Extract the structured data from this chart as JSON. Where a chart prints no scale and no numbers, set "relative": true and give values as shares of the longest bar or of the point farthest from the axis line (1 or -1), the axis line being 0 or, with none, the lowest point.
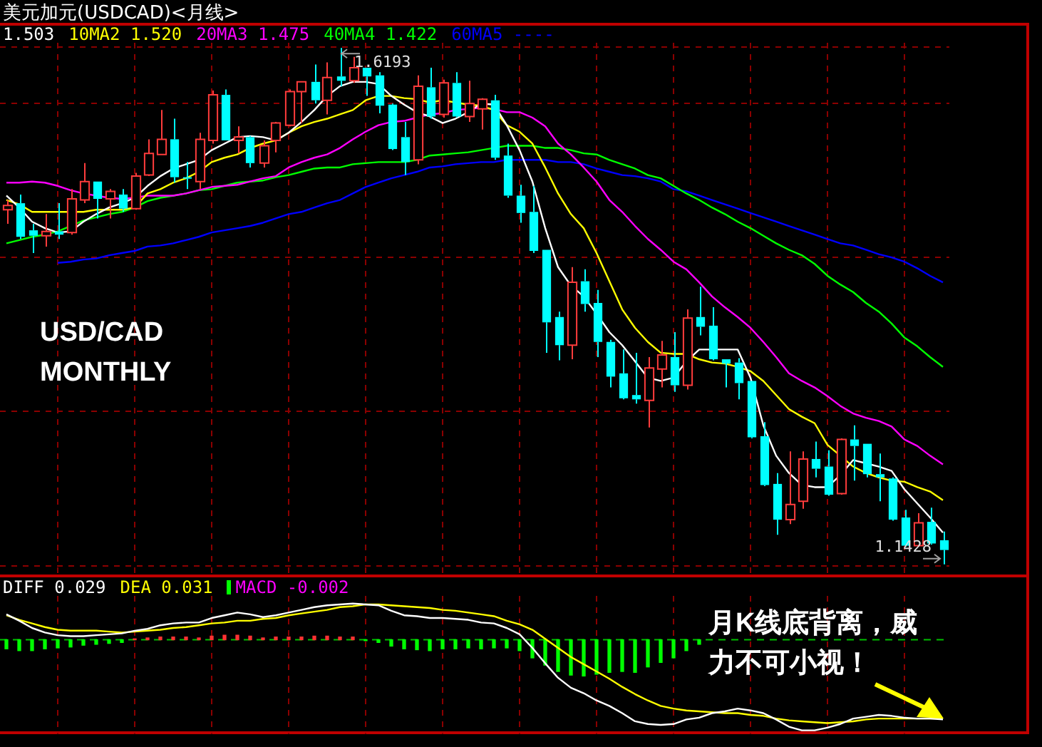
{
  "chart_data": [
    {
      "type": "candlestick",
      "title": "美元加元(USDCAD)<月线>",
      "categories": [
        null,
        null,
        null,
        null,
        null,
        null,
        null,
        null,
        null,
        null,
        null,
        null,
        null,
        null,
        null,
        null,
        null,
        null,
        null,
        null,
        null,
        null,
        null,
        null,
        null,
        null,
        null,
        null,
        null,
        null,
        null,
        null,
        null,
        null,
        null,
        null,
        null,
        null,
        null,
        null,
        null,
        null,
        null,
        null,
        null,
        null,
        null,
        null,
        null,
        null,
        null,
        null,
        null,
        null,
        null,
        null,
        null,
        null,
        null,
        null,
        null,
        null,
        null,
        null,
        null,
        null,
        null,
        null,
        null,
        null,
        null,
        null,
        null,
        null
      ],
      "ohlc": [
        [
          1.47,
          1.479,
          1.457,
          1.474
        ],
        [
          1.476,
          1.484,
          1.443,
          1.445
        ],
        [
          1.451,
          1.457,
          1.43,
          1.446
        ],
        [
          1.446,
          1.466,
          1.436,
          1.45
        ],
        [
          1.45,
          1.476,
          1.443,
          1.447
        ],
        [
          1.449,
          1.489,
          1.447,
          1.48
        ],
        [
          1.479,
          1.513,
          1.476,
          1.496
        ],
        [
          1.496,
          1.496,
          1.462,
          1.48
        ],
        [
          1.48,
          1.489,
          1.462,
          1.487
        ],
        [
          1.484,
          1.489,
          1.468,
          1.471
        ],
        [
          1.471,
          1.504,
          1.47,
          1.501
        ],
        [
          1.502,
          1.535,
          1.501,
          1.522
        ],
        [
          1.521,
          1.562,
          1.521,
          1.535
        ],
        [
          1.535,
          1.554,
          1.495,
          1.5
        ],
        [
          1.5,
          1.514,
          1.489,
          1.499
        ],
        [
          1.496,
          1.541,
          1.489,
          1.535
        ],
        [
          1.534,
          1.58,
          1.531,
          1.576
        ],
        [
          1.576,
          1.581,
          1.534,
          1.534
        ],
        [
          1.534,
          1.547,
          1.522,
          1.537
        ],
        [
          1.537,
          1.538,
          1.509,
          1.513
        ],
        [
          1.513,
          1.534,
          1.509,
          1.529
        ],
        [
          1.534,
          1.551,
          1.523,
          1.55
        ],
        [
          1.548,
          1.581,
          1.547,
          1.579
        ],
        [
          1.579,
          1.588,
          1.55,
          1.588
        ],
        [
          1.588,
          1.604,
          1.568,
          1.571
        ],
        [
          1.571,
          1.606,
          1.558,
          1.592
        ],
        [
          1.593,
          1.6193,
          1.584,
          1.589
        ],
        [
          1.589,
          1.611,
          1.587,
          1.601
        ],
        [
          1.601,
          1.601,
          1.575,
          1.593
        ],
        [
          1.594,
          1.597,
          1.559,
          1.566
        ],
        [
          1.567,
          1.568,
          1.525,
          1.526
        ],
        [
          1.537,
          1.551,
          1.502,
          1.514
        ],
        [
          1.516,
          1.594,
          1.512,
          1.584
        ],
        [
          1.583,
          1.601,
          1.554,
          1.556
        ],
        [
          1.558,
          1.59,
          1.555,
          1.587
        ],
        [
          1.587,
          1.597,
          1.555,
          1.556
        ],
        [
          1.556,
          1.589,
          1.551,
          1.568
        ],
        [
          1.563,
          1.573,
          1.544,
          1.572
        ],
        [
          1.571,
          1.576,
          1.516,
          1.518
        ],
        [
          1.52,
          1.531,
          1.481,
          1.483
        ],
        [
          1.483,
          1.493,
          1.458,
          1.467
        ],
        [
          1.468,
          1.492,
          1.43,
          1.432
        ],
        [
          1.433,
          1.433,
          1.338,
          1.366
        ],
        [
          1.371,
          1.376,
          1.331,
          1.345
        ],
        [
          1.345,
          1.417,
          1.332,
          1.403
        ],
        [
          1.404,
          1.415,
          1.376,
          1.383
        ],
        [
          1.384,
          1.396,
          1.334,
          1.348
        ],
        [
          1.348,
          1.35,
          1.306,
          1.316
        ],
        [
          1.319,
          1.341,
          1.295,
          1.296
        ],
        [
          1.299,
          1.338,
          1.291,
          1.295
        ],
        [
          1.294,
          1.334,
          1.269,
          1.324
        ],
        [
          1.323,
          1.349,
          1.306,
          1.336
        ],
        [
          1.334,
          1.357,
          1.302,
          1.308
        ],
        [
          1.308,
          1.378,
          1.304,
          1.37
        ],
        [
          1.371,
          1.399,
          1.354,
          1.362
        ],
        [
          1.363,
          1.38,
          1.331,
          1.332
        ],
        [
          1.332,
          1.332,
          1.306,
          1.328
        ],
        [
          1.329,
          1.333,
          1.295,
          1.31
        ],
        [
          1.312,
          1.312,
          1.259,
          1.26
        ],
        [
          1.261,
          1.274,
          1.215,
          1.216
        ],
        [
          1.217,
          1.227,
          1.17,
          1.184
        ],
        [
          1.184,
          1.247,
          1.18,
          1.198
        ],
        [
          1.201,
          1.247,
          1.194,
          1.24
        ],
        [
          1.24,
          1.256,
          1.223,
          1.231
        ],
        [
          1.233,
          1.248,
          1.206,
          1.207
        ],
        [
          1.208,
          1.259,
          1.207,
          1.258
        ],
        [
          1.258,
          1.271,
          1.22,
          1.252
        ],
        [
          1.254,
          1.254,
          1.223,
          1.226
        ],
        [
          1.226,
          1.245,
          1.201,
          1.223
        ],
        [
          1.222,
          1.223,
          1.183,
          1.184
        ],
        [
          1.186,
          1.193,
          1.159,
          1.16
        ],
        [
          1.16,
          1.19,
          1.159,
          1.181
        ],
        [
          1.182,
          1.195,
          1.161,
          1.162
        ],
        [
          1.165,
          1.173,
          1.1428,
          1.156
        ]
      ],
      "colors": [
        "#ff3c3c",
        "#00ffff",
        "#00ffff",
        "#ff3c3c",
        "#00ffff",
        "#ff3c3c",
        "#ff3c3c",
        "#00ffff",
        "#ff3c3c",
        "#00ffff",
        "#ff3c3c",
        "#ff3c3c",
        "#ff3c3c",
        "#00ffff",
        "#00ffff",
        "#ff3c3c",
        "#ff3c3c",
        "#00ffff",
        "#ff3c3c",
        "#00ffff",
        "#ff3c3c",
        "#ff3c3c",
        "#ff3c3c",
        "#ff3c3c",
        "#00ffff",
        "#ff3c3c",
        "#00ffff",
        "#ff3c3c",
        "#00ffff",
        "#00ffff",
        "#00ffff",
        "#00ffff",
        "#ff3c3c",
        "#00ffff",
        "#ff3c3c",
        "#00ffff",
        "#ff3c3c",
        "#ff3c3c",
        "#00ffff",
        "#00ffff",
        "#00ffff",
        "#00ffff",
        "#00ffff",
        "#00ffff",
        "#ff3c3c",
        "#00ffff",
        "#00ffff",
        "#00ffff",
        "#00ffff",
        "#00ffff",
        "#ff3c3c",
        "#ff3c3c",
        "#00ffff",
        "#ff3c3c",
        "#00ffff",
        "#00ffff",
        "#00ffff",
        "#00ffff",
        "#00ffff",
        "#00ffff",
        "#00ffff",
        "#ff3c3c",
        "#ff3c3c",
        "#00ffff",
        "#00ffff",
        "#ff3c3c",
        "#00ffff",
        "#00ffff",
        "#00ffff",
        "#00ffff",
        "#00ffff",
        "#ff3c3c",
        "#00ffff",
        "#00ffff"
      ],
      "series": [
        {
          "type": "line",
          "name": "1.503",
          "color": "#ffffff",
          "values": [
            1.483,
            1.472,
            1.459,
            1.453,
            1.449,
            1.45,
            1.459,
            1.466,
            1.472,
            1.476,
            1.481,
            1.492,
            1.501,
            1.508,
            1.512,
            1.516,
            1.525,
            1.531,
            1.537,
            1.538,
            1.537,
            1.534,
            1.541,
            1.551,
            1.562,
            1.575,
            1.584,
            1.588,
            1.588,
            1.586,
            1.575,
            1.567,
            1.56,
            1.556,
            1.55,
            1.554,
            1.56,
            1.568,
            1.567,
            1.548,
            1.525,
            1.496,
            1.453,
            1.417,
            1.4,
            1.39,
            1.374,
            1.357,
            1.345,
            1.33,
            1.315,
            1.312,
            1.315,
            1.33,
            1.341,
            1.341,
            1.341,
            1.341,
            1.315,
            1.271,
            1.243,
            1.227,
            1.216,
            1.214,
            1.214,
            1.225,
            1.239,
            1.236,
            1.233,
            1.229,
            1.212,
            1.199,
            1.186,
            1.172
          ]
        },
        {
          "type": "line",
          "name": "10MA2 1.520",
          "color": "#ffff00",
          "values": [
            1.479,
            1.475,
            1.468,
            1.468,
            1.468,
            1.468,
            1.468,
            1.47,
            1.47,
            1.47,
            1.472,
            1.485,
            1.489,
            1.495,
            1.499,
            1.505,
            1.514,
            1.518,
            1.521,
            1.527,
            1.531,
            1.534,
            1.541,
            1.547,
            1.551,
            1.554,
            1.558,
            1.562,
            1.571,
            1.575,
            1.575,
            1.573,
            1.572,
            1.569,
            1.571,
            1.569,
            1.567,
            1.566,
            1.562,
            1.548,
            1.542,
            1.531,
            1.509,
            1.485,
            1.466,
            1.453,
            1.43,
            1.404,
            1.378,
            1.361,
            1.348,
            1.338,
            1.337,
            1.337,
            1.332,
            1.329,
            1.328,
            1.325,
            1.321,
            1.312,
            1.299,
            1.286,
            1.279,
            1.273,
            1.253,
            1.243,
            1.233,
            1.227,
            1.223,
            1.22,
            1.219,
            1.214,
            1.21,
            1.202
          ]
        },
        {
          "type": "line",
          "name": "20MA3 1.475",
          "color": "#ff00ff",
          "values": [
            1.495,
            1.495,
            1.496,
            1.495,
            1.492,
            1.488,
            1.485,
            1.483,
            1.481,
            1.48,
            1.481,
            1.483,
            1.483,
            1.483,
            1.485,
            1.488,
            1.491,
            1.492,
            1.493,
            1.496,
            1.499,
            1.501,
            1.509,
            1.514,
            1.518,
            1.521,
            1.527,
            1.535,
            1.542,
            1.548,
            1.551,
            1.552,
            1.555,
            1.558,
            1.559,
            1.562,
            1.563,
            1.564,
            1.563,
            1.56,
            1.56,
            1.555,
            1.547,
            1.531,
            1.521,
            1.509,
            1.496,
            1.479,
            1.468,
            1.455,
            1.443,
            1.433,
            1.422,
            1.415,
            1.403,
            1.39,
            1.38,
            1.371,
            1.361,
            1.348,
            1.334,
            1.319,
            1.312,
            1.306,
            1.298,
            1.289,
            1.282,
            1.278,
            1.275,
            1.27,
            1.258,
            1.252,
            1.243,
            1.235
          ]
        },
        {
          "type": "line",
          "name": "40MA4 1.422",
          "color": "#00ff00",
          "values": [
            1.439,
            1.442,
            1.445,
            1.447,
            1.45,
            1.455,
            1.46,
            1.463,
            1.466,
            1.468,
            1.472,
            1.478,
            1.481,
            1.483,
            1.485,
            1.488,
            1.489,
            1.492,
            1.495,
            1.496,
            1.497,
            1.5,
            1.502,
            1.505,
            1.508,
            1.509,
            1.509,
            1.512,
            1.513,
            1.514,
            1.514,
            1.514,
            1.516,
            1.52,
            1.521,
            1.522,
            1.523,
            1.525,
            1.527,
            1.529,
            1.529,
            1.529,
            1.527,
            1.527,
            1.525,
            1.522,
            1.521,
            1.516,
            1.512,
            1.508,
            1.502,
            1.499,
            1.492,
            1.485,
            1.479,
            1.472,
            1.466,
            1.459,
            1.453,
            1.446,
            1.439,
            1.433,
            1.428,
            1.42,
            1.409,
            1.401,
            1.394,
            1.384,
            1.376,
            1.365,
            1.352,
            1.344,
            1.334,
            1.325
          ]
        },
        {
          "type": "line",
          "name": "60MA5 ----",
          "color": "#0000ff",
          "values": [
            null,
            null,
            null,
            null,
            1.421,
            1.422,
            1.424,
            1.425,
            1.428,
            1.43,
            1.432,
            1.436,
            1.437,
            1.439,
            1.442,
            1.445,
            1.449,
            1.451,
            1.453,
            1.455,
            1.458,
            1.462,
            1.466,
            1.468,
            1.472,
            1.476,
            1.479,
            1.485,
            1.491,
            1.495,
            1.499,
            1.502,
            1.505,
            1.509,
            1.51,
            1.512,
            1.513,
            1.514,
            1.514,
            1.516,
            1.516,
            1.516,
            1.516,
            1.514,
            1.514,
            1.512,
            1.508,
            1.505,
            1.502,
            1.501,
            1.499,
            1.496,
            1.489,
            1.487,
            1.483,
            1.479,
            1.475,
            1.471,
            1.467,
            1.463,
            1.459,
            1.455,
            1.451,
            1.447,
            1.443,
            1.439,
            1.437,
            1.433,
            1.429,
            1.426,
            1.422,
            1.416,
            1.409,
            1.403
          ]
        }
      ],
      "marker": "none",
      "legend": "top left",
      "grid": true,
      "tick_labels": false,
      "yticks": [
        {
          "value": 1.62,
          "label": null
        },
        {
          "value": 1.568,
          "label": null
        },
        {
          "value": 1.426,
          "label": null
        },
        {
          "value": 1.284,
          "label": null
        },
        {
          "value": 1.141,
          "label": null
        }
      ],
      "annotations": [
        "USD/CAD MONTHLY",
        "1.6193",
        "1.1428"
      ]
    },
    {
      "type": "line",
      "relative": true,
      "categories": [
        null,
        null,
        null,
        null,
        null,
        null,
        null,
        null,
        null,
        null,
        null,
        null,
        null,
        null,
        null,
        null,
        null,
        null,
        null,
        null,
        null,
        null,
        null,
        null,
        null,
        null,
        null,
        null,
        null,
        null,
        null,
        null,
        null,
        null,
        null,
        null,
        null,
        null,
        null,
        null,
        null,
        null,
        null,
        null,
        null,
        null,
        null,
        null,
        null,
        null,
        null,
        null,
        null,
        null,
        null,
        null,
        null,
        null,
        null,
        null,
        null,
        null,
        null,
        null,
        null,
        null,
        null,
        null,
        null,
        null,
        null,
        null,
        null,
        null
      ],
      "series": [
        {
          "name": "DIFF 0.029",
          "color": "#ffffff",
          "values": [
            0.28,
            0.21,
            0.13,
            0.08,
            0.05,
            0.04,
            0.04,
            0.05,
            0.06,
            0.07,
            0.1,
            0.12,
            0.16,
            0.18,
            0.19,
            0.19,
            0.24,
            0.27,
            0.3,
            0.28,
            0.25,
            0.27,
            0.3,
            0.33,
            0.36,
            0.38,
            0.39,
            0.4,
            0.39,
            0.38,
            0.32,
            0.27,
            0.26,
            0.24,
            0.24,
            0.23,
            0.22,
            0.19,
            0.18,
            0.13,
            0.06,
            -0.09,
            -0.26,
            -0.42,
            -0.53,
            -0.59,
            -0.67,
            -0.73,
            -0.81,
            -0.9,
            -0.93,
            -0.94,
            -0.93,
            -0.88,
            -0.86,
            -0.81,
            -0.79,
            -0.76,
            -0.78,
            -0.81,
            -0.88,
            -0.96,
            -1,
            -1,
            -0.97,
            -0.93,
            -0.87,
            -0.85,
            -0.83,
            -0.84,
            -0.86,
            -0.87,
            -0.87,
            -0.88
          ]
        },
        {
          "name": "DEA 0.031",
          "color": "#ffff00",
          "values": [
            0.27,
            0.22,
            0.18,
            0.14,
            0.11,
            0.1,
            0.1,
            0.1,
            0.09,
            0.08,
            0.09,
            0.1,
            0.11,
            0.13,
            0.14,
            0.16,
            0.18,
            0.19,
            0.21,
            0.21,
            0.23,
            0.24,
            0.27,
            0.29,
            0.31,
            0.33,
            0.36,
            0.37,
            0.39,
            0.39,
            0.38,
            0.37,
            0.36,
            0.35,
            0.33,
            0.32,
            0.3,
            0.28,
            0.26,
            0.21,
            0.17,
            0.11,
            0.01,
            -0.09,
            -0.19,
            -0.27,
            -0.35,
            -0.43,
            -0.52,
            -0.6,
            -0.67,
            -0.73,
            -0.76,
            -0.78,
            -0.79,
            -0.8,
            -0.81,
            -0.81,
            -0.83,
            -0.84,
            -0.87,
            -0.89,
            -0.9,
            -0.91,
            -0.92,
            -0.91,
            -0.9,
            -0.88,
            -0.87,
            -0.87,
            -0.87,
            -0.87,
            -0.87,
            -0.87
          ]
        },
        {
          "type": "bar",
          "name": "MACD -0.002",
          "color": "#ff00ff",
          "values": [
            -0.1,
            -0.12,
            -0.12,
            -0.1,
            -0.09,
            -0.08,
            -0.06,
            -0.05,
            -0.04,
            -0.03,
            0.01,
            0.02,
            0.03,
            0.03,
            0.03,
            0.02,
            0.04,
            0.05,
            0.05,
            0.04,
            0.02,
            0.03,
            0.03,
            0.03,
            0.04,
            0.04,
            0.03,
            0.03,
            -0.01,
            -0.03,
            -0.07,
            -0.1,
            -0.11,
            -0.12,
            -0.1,
            -0.1,
            -0.09,
            -0.1,
            -0.09,
            -0.09,
            -0.12,
            -0.2,
            -0.28,
            -0.35,
            -0.39,
            -0.4,
            -0.38,
            -0.36,
            -0.35,
            -0.36,
            -0.3,
            -0.25,
            -0.2,
            -0.12,
            -0.05,
            null,
            null,
            null,
            null,
            null,
            null,
            null,
            null,
            null,
            null,
            null,
            null,
            null,
            null,
            null,
            null,
            null,
            null,
            null
          ],
          "colors": [
            "#00ff00",
            "#00ff00",
            "#00ff00",
            "#00ff00",
            "#00ff00",
            "#00ff00",
            "#00ff00",
            "#00ff00",
            "#00ff00",
            "#00ff00",
            "#ff3232",
            "#ff3232",
            "#ff3232",
            "#ff3232",
            "#ff3232",
            "#ff3232",
            "#ff3232",
            "#ff3232",
            "#ff3232",
            "#ff3232",
            "#ff3232",
            "#ff3232",
            "#ff3232",
            "#ff3232",
            "#ff3232",
            "#ff3232",
            "#ff3232",
            "#ff3232",
            "#00ff00",
            "#00ff00",
            "#00ff00",
            "#00ff00",
            "#00ff00",
            "#00ff00",
            "#00ff00",
            "#00ff00",
            "#00ff00",
            "#00ff00",
            "#00ff00",
            "#00ff00",
            "#00ff00",
            "#00ff00",
            "#00ff00",
            "#00ff00",
            "#00ff00",
            "#00ff00",
            "#00ff00",
            "#00ff00",
            "#00ff00",
            "#00ff00",
            "#00ff00",
            "#00ff00",
            "#00ff00",
            "#00ff00",
            "#00ff00",
            null,
            null,
            null,
            null,
            null,
            null,
            null,
            null,
            null,
            null,
            null,
            null,
            null,
            null,
            null,
            null,
            null,
            null,
            null
          ]
        }
      ],
      "legend": "top left",
      "grid": "x",
      "tick_labels": false,
      "ref_lines": [
        {
          "axis": "y",
          "value": 0,
          "color": "#00c000",
          "line_style": "dashed"
        }
      ],
      "annotations": [
        "月K线底背离，威力不可小视！"
      ]
    }
  ]
}
